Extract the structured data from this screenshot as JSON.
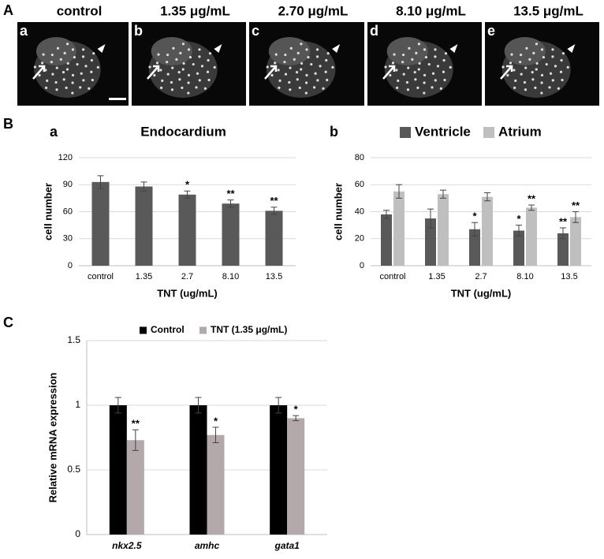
{
  "figure": {
    "panel_labels": [
      "A",
      "B",
      "C"
    ],
    "images": [
      {
        "label": "a",
        "title": "control"
      },
      {
        "label": "b",
        "title": "1.35 μg/mL"
      },
      {
        "label": "c",
        "title": "2.70 μg/mL"
      },
      {
        "label": "d",
        "title": "8.10 μg/mL"
      },
      {
        "label": "e",
        "title": "13.5 μg/mL"
      }
    ],
    "subpanel_labels": [
      "a",
      "b"
    ]
  },
  "chart_data": [
    {
      "type": "bar",
      "title": "Endocardium",
      "categories": [
        "control",
        "1.35",
        "2.7",
        "8.10",
        "13.5"
      ],
      "values": [
        93,
        88,
        79,
        69,
        61
      ],
      "errors": [
        7,
        5,
        4,
        4,
        4
      ],
      "annotations": [
        null,
        null,
        "*",
        "**",
        "**"
      ],
      "color": "#595959",
      "xlabel": "TNT (ug/mL)",
      "ylabel": "cell number",
      "ylim": [
        0,
        120
      ],
      "yticks": [
        0,
        30,
        60,
        90,
        120
      ],
      "grid": true
    },
    {
      "type": "bar",
      "categories": [
        "control",
        "1.35",
        "2.7",
        "8.10",
        "13.5"
      ],
      "series": [
        {
          "name": "Ventricle",
          "color": "#595959",
          "values": [
            38,
            35,
            27,
            26,
            24
          ],
          "errors": [
            3,
            7,
            5,
            4,
            4
          ],
          "annotations": [
            null,
            null,
            "*",
            "*",
            "**"
          ]
        },
        {
          "name": "Atrium",
          "color": "#bfbfbf",
          "values": [
            55,
            53,
            51,
            43,
            36
          ],
          "errors": [
            5,
            3,
            3,
            2,
            4
          ],
          "annotations": [
            null,
            null,
            null,
            "**",
            "**"
          ]
        }
      ],
      "xlabel": "TNT (ug/mL)",
      "ylabel": "cell number",
      "ylim": [
        0,
        80
      ],
      "yticks": [
        0,
        20,
        40,
        60,
        80
      ],
      "grid": true,
      "legend": "top"
    },
    {
      "type": "bar",
      "categories": [
        "nkx2.5",
        "amhc",
        "gata1"
      ],
      "series": [
        {
          "name": "Control",
          "color": "#000000",
          "values": [
            1,
            1,
            1
          ],
          "errors": [
            0.06,
            0.06,
            0.06
          ],
          "annotations": [
            null,
            null,
            null
          ]
        },
        {
          "name": "TNT (1.35 μg/mL)",
          "color": "#b3a9ab",
          "values": [
            0.73,
            0.77,
            0.9
          ],
          "errors": [
            0.08,
            0.06,
            0.02
          ],
          "annotations": [
            "**",
            "*",
            "*"
          ]
        }
      ],
      "ylabel": "Relative mRNA expression",
      "ylim": [
        0,
        1.5
      ],
      "yticks": [
        0,
        0.5,
        1,
        1.5
      ],
      "grid": true,
      "legend": "top"
    }
  ]
}
